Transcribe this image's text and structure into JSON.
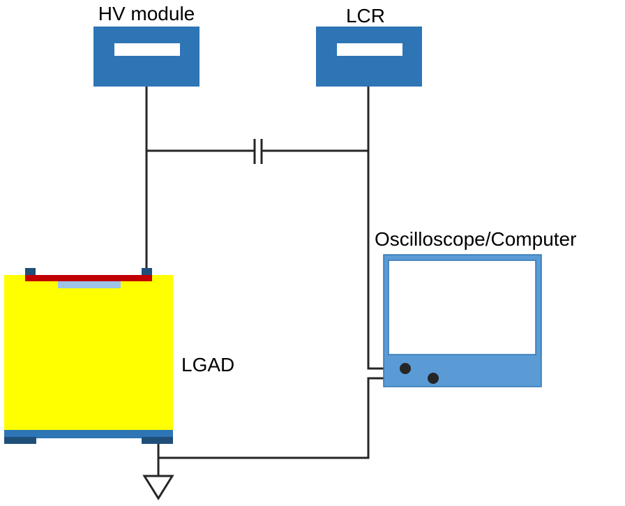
{
  "labels": {
    "hv_module": "HV module",
    "lcr": "LCR",
    "oscilloscope": "Oscilloscope/Computer",
    "lgad": "LGAD"
  },
  "colors": {
    "instrument_blue": "#2e75b6",
    "scope_blue": "#5b9bd5",
    "pad_dark_blue": "#1f4e79",
    "lgad_yellow": "#ffff00",
    "gain_red": "#c00000",
    "implant_light_blue": "#9dc3e6",
    "wire": "#262626",
    "screen_white": "#ffffff"
  },
  "icons": {
    "capacitor": "capacitor-symbol",
    "ground": "ground-symbol"
  }
}
